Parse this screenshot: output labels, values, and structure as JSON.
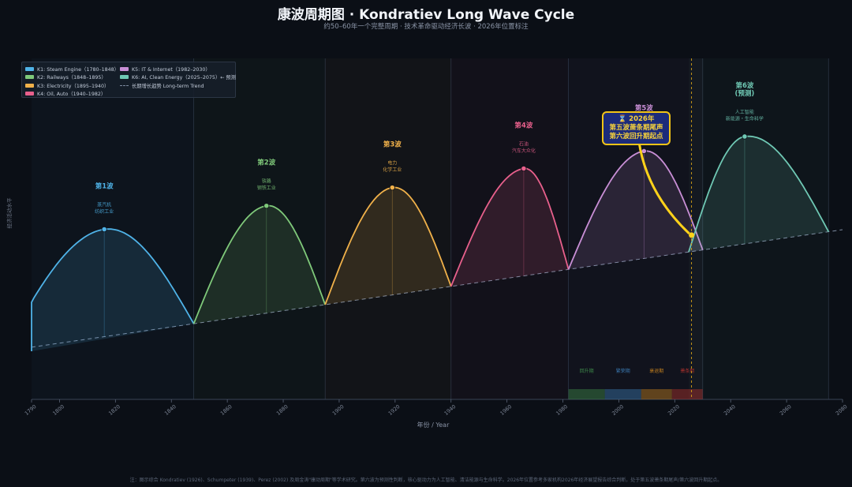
{
  "title": "康波周期图 · Kondratiev Long Wave Cycle",
  "subtitle": "约50–60年一个完整周期 · 技术革命驱动经济长波 · 2026年位置标注",
  "footnote": "注：图示综合 Kondratiev (1926)、Schumpeter (1939)、Perez (2002) 及周金涛\"康动周期\"等学术研究。第六波为预测性判断，核心驱动力为人工智能、清洁能源与生命科学。2026年位置参考多家机构2026年经济展望报告综合判断，处于第五波萧条期尾声/第六波回升期起点。",
  "legend": [
    {
      "label": "K1: Steam Engine（1780–1848）",
      "color": "#4fb3e8"
    },
    {
      "label": "K5: IT & Internet（1982–2030）",
      "color": "#c98fd6"
    },
    {
      "label": "K2: Railways（1848–1895）",
      "color": "#7fc97a"
    },
    {
      "label": "K6: AI, Clean Energy（2025–2075）← 预测",
      "color": "#6fc8b4"
    },
    {
      "label": "K3: Electricity（1895–1940）",
      "color": "#f0b14a"
    },
    {
      "label": "长期增长趋势 Long-term Trend",
      "color": "#7d8aa0",
      "dashed": true
    },
    {
      "label": "K4: Oil, Auto（1940–1982）",
      "color": "#e8608c"
    }
  ],
  "callout": {
    "line1": "⌛ 2026年",
    "line2": "第五波萧条期尾声",
    "line3": "第六波回升期起点"
  },
  "colors": {
    "background": "#0b0f16",
    "callout_border": "#f2c417",
    "callout_fill": "#1c2b7a",
    "highlight": "#ffd21a"
  },
  "chart_data": {
    "type": "line",
    "xlabel": "年份 / Year",
    "ylabel": "经济活动水平",
    "xlim": [
      1790,
      2080
    ],
    "xticks": [
      1790,
      1800,
      1820,
      1840,
      1860,
      1880,
      1900,
      1920,
      1940,
      1960,
      1980,
      2000,
      2020,
      2040,
      2060,
      2080
    ],
    "grid": false,
    "legend_position": "top-left",
    "trend": {
      "from": [
        1780,
        0
      ],
      "to": [
        2080,
        1.0
      ],
      "style": "dashed"
    },
    "series": [
      {
        "name": "第1波",
        "start": 1780,
        "peak": 1816,
        "end": 1848,
        "amplitude": 1.0,
        "color": "#4fb3e8",
        "label": "第1波",
        "desc": [
          "蒸汽机",
          "纺织工业"
        ]
      },
      {
        "name": "第2波",
        "start": 1848,
        "peak": 1874,
        "end": 1895,
        "amplitude": 1.0,
        "color": "#7fc97a",
        "label": "第2波",
        "desc": [
          "铁路",
          "钢铁工业"
        ]
      },
      {
        "name": "第3波",
        "start": 1895,
        "peak": 1919,
        "end": 1940,
        "amplitude": 1.0,
        "color": "#f0b14a",
        "label": "第3波",
        "desc": [
          "电力",
          "化学工业"
        ]
      },
      {
        "name": "第4波",
        "start": 1940,
        "peak": 1966,
        "end": 1982,
        "amplitude": 1.0,
        "color": "#e8608c",
        "label": "第4波",
        "desc": [
          "石油",
          "汽车大众化"
        ]
      },
      {
        "name": "第5波",
        "start": 1982,
        "peak": 2009,
        "end": 2030,
        "amplitude": 1.0,
        "color": "#c98fd6",
        "label": "第5波",
        "desc": [
          "信息技术",
          "互联网"
        ]
      },
      {
        "name": "第6波",
        "start": 2025,
        "peak": 2045,
        "end": 2075,
        "amplitude": 1.0,
        "color": "#6fc8b4",
        "label": "第6波",
        "sublabel": "(预测)",
        "desc": [
          "人工智能",
          "新能源・生命科学"
        ]
      }
    ],
    "phases": [
      {
        "label": "回升期",
        "from": 1982,
        "to": 1995,
        "color": "#3e8a4a"
      },
      {
        "label": "繁荣期",
        "from": 1995,
        "to": 2008,
        "color": "#3a78b0"
      },
      {
        "label": "衰退期",
        "from": 2008,
        "to": 2019,
        "color": "#c07e1e"
      },
      {
        "label": "萧条期",
        "from": 2019,
        "to": 2030,
        "color": "#b0322d"
      }
    ],
    "marker_year": 2026
  }
}
